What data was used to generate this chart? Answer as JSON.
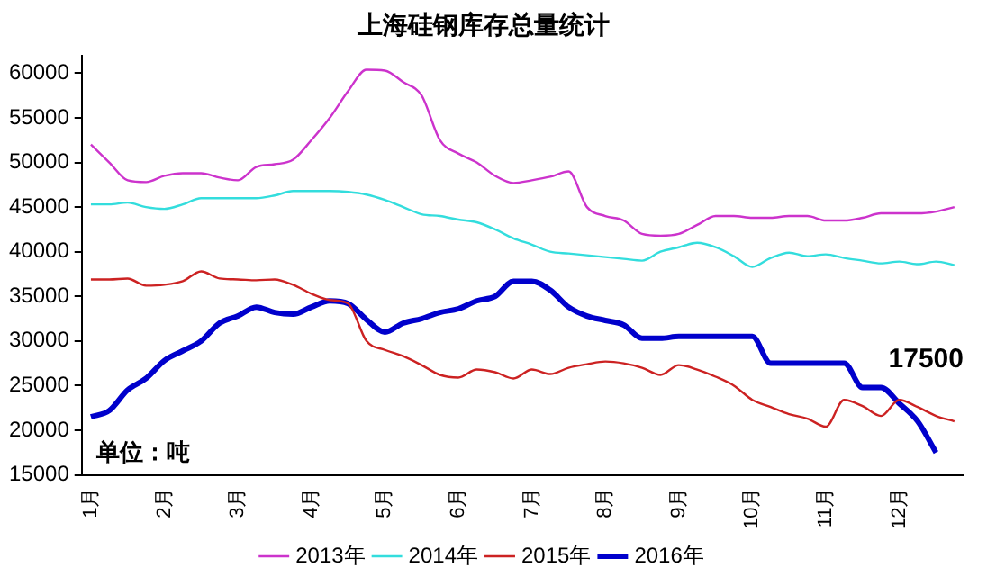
{
  "chart_data": {
    "type": "line",
    "title": "上海硅钢库存总量统计",
    "categories": [
      "1月",
      null,
      null,
      null,
      "2月",
      null,
      null,
      null,
      "3月",
      null,
      null,
      null,
      "4月",
      null,
      null,
      null,
      "5月",
      null,
      null,
      null,
      "6月",
      null,
      null,
      null,
      "7月",
      null,
      null,
      null,
      "8月",
      null,
      null,
      null,
      "9月",
      null,
      null,
      null,
      "10月",
      null,
      null,
      null,
      "11月",
      null,
      null,
      null,
      "12月",
      null,
      null,
      null
    ],
    "series": [
      {
        "name": "2013年",
        "color": "#cc33cc",
        "values": [
          52000,
          50000,
          48000,
          47800,
          48500,
          48800,
          48800,
          48300,
          48000,
          49500,
          49800,
          50300,
          52500,
          55000,
          58000,
          60400,
          60300,
          59000,
          57500,
          52500,
          51000,
          50000,
          48500,
          47700,
          48000,
          48400,
          49000,
          45000,
          44000,
          43500,
          42000,
          41800,
          42000,
          43000,
          44000,
          44000,
          43800,
          43800,
          44000,
          44000,
          43500,
          43500,
          43800,
          44300,
          44300,
          44300,
          44500,
          45000
        ]
      },
      {
        "name": "2014年",
        "color": "#33dddd",
        "values": [
          45300,
          45300,
          45500,
          45000,
          44800,
          45300,
          46000,
          46000,
          46000,
          46000,
          46300,
          46800,
          46800,
          46800,
          46700,
          46400,
          45800,
          45000,
          44200,
          44000,
          43600,
          43300,
          42500,
          41500,
          40800,
          40000,
          39800,
          39600,
          39400,
          39200,
          39000,
          40000,
          40500,
          41000,
          40500,
          39500,
          38300,
          39300,
          39900,
          39500,
          39700,
          39300,
          39000,
          38700,
          38900,
          38600,
          38900,
          38500
        ]
      },
      {
        "name": "2015年",
        "color": "#cc2222",
        "values": [
          36900,
          36900,
          37000,
          36200,
          36300,
          36700,
          37800,
          37000,
          36900,
          36800,
          36900,
          36300,
          35300,
          34600,
          34200,
          30000,
          29000,
          28300,
          27300,
          26200,
          25900,
          26800,
          26500,
          25800,
          26800,
          26300,
          27000,
          27400,
          27700,
          27500,
          27000,
          26200,
          27300,
          26800,
          26000,
          25000,
          23400,
          22600,
          21800,
          21300,
          20400,
          23400,
          22700,
          21600,
          23400,
          22600,
          21600,
          21000
        ]
      },
      {
        "name": "2016年",
        "color": "#0000cc",
        "values": [
          21500,
          22200,
          24500,
          25800,
          27800,
          28900,
          30000,
          32000,
          32800,
          33800,
          33200,
          33000,
          33800,
          34500,
          34200,
          32400,
          31000,
          32000,
          32500,
          33200,
          33600,
          34500,
          35000,
          36700,
          36700,
          35700,
          33800,
          32800,
          32300,
          31800,
          30300,
          30300,
          30500,
          30500,
          30500,
          30500,
          30500,
          27500,
          27500,
          27500,
          27500,
          27500,
          24800,
          24800,
          23000,
          21000,
          17500,
          null
        ]
      }
    ],
    "ylim": [
      15000,
      62000
    ],
    "yticks": [
      15000,
      20000,
      25000,
      30000,
      35000,
      40000,
      45000,
      50000,
      55000,
      60000
    ],
    "grid": false,
    "legend": "bottom",
    "marker": "none",
    "line_style": "solid",
    "annotations": [
      "单位：吨",
      {
        "text": "17500",
        "y": 17500
      }
    ]
  }
}
